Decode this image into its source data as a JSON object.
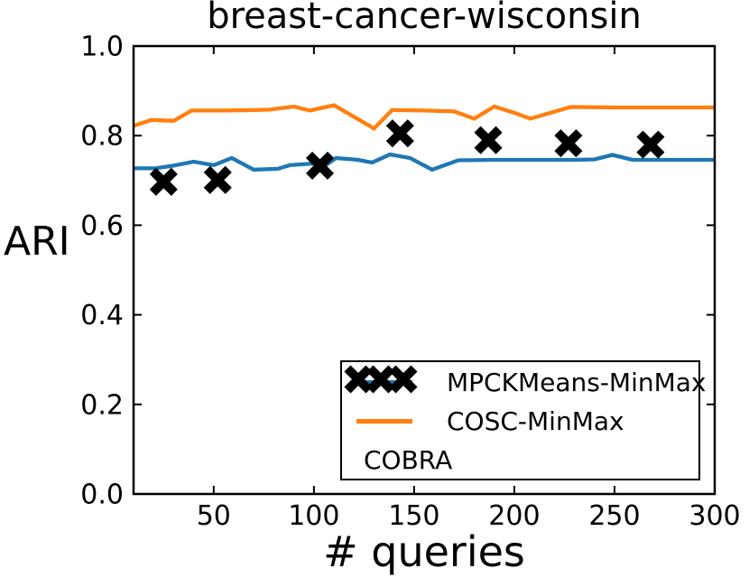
{
  "figure": {
    "background": "#ffffff",
    "text_color": "#000000"
  },
  "chart_data": {
    "type": "line",
    "title": "breast-cancer-wisconsin",
    "xlabel": "# queries",
    "ylabel": "ARI",
    "xlim": [
      10,
      300
    ],
    "ylim": [
      0.0,
      1.0
    ],
    "x_ticks": [
      50,
      100,
      150,
      200,
      250,
      300
    ],
    "y_ticks": [
      0.0,
      0.2,
      0.4,
      0.6,
      0.8,
      1.0
    ],
    "grid": false,
    "legend": {
      "position": "lower-right-inside-axes",
      "border": "#000000",
      "entries": [
        "MPCKMeans-MinMax",
        "COSC-MinMax",
        "COBRA"
      ]
    },
    "series": [
      {
        "name": "MPCKMeans-MinMax",
        "type": "line",
        "color": "#1f77b4",
        "x": [
          10,
          21,
          30,
          40,
          50,
          59,
          70,
          82,
          88,
          100,
          105,
          111,
          122,
          129,
          138,
          148,
          159,
          172,
          190,
          210,
          230,
          240,
          249,
          259,
          280,
          300
        ],
        "y": [
          0.727,
          0.727,
          0.733,
          0.742,
          0.734,
          0.75,
          0.724,
          0.726,
          0.734,
          0.738,
          0.731,
          0.75,
          0.746,
          0.74,
          0.758,
          0.75,
          0.724,
          0.745,
          0.746,
          0.746,
          0.746,
          0.747,
          0.757,
          0.746,
          0.746,
          0.746
        ]
      },
      {
        "name": "COSC-MinMax",
        "type": "line",
        "color": "#ff7f0e",
        "x": [
          10,
          19,
          30,
          39,
          55,
          70,
          78,
          90,
          98,
          110,
          120,
          130,
          139,
          155,
          170,
          180,
          190,
          200,
          208,
          218,
          228,
          250,
          275,
          300
        ],
        "y": [
          0.822,
          0.835,
          0.833,
          0.856,
          0.856,
          0.857,
          0.858,
          0.865,
          0.856,
          0.868,
          0.842,
          0.816,
          0.857,
          0.856,
          0.854,
          0.838,
          0.865,
          0.851,
          0.838,
          0.851,
          0.864,
          0.863,
          0.863,
          0.863
        ]
      },
      {
        "name": "COBRA",
        "type": "scatter",
        "marker": "x",
        "color": "#000000",
        "x": [
          25,
          52,
          103,
          143,
          187,
          227,
          268
        ],
        "y": [
          0.697,
          0.701,
          0.733,
          0.805,
          0.79,
          0.783,
          0.78
        ]
      }
    ]
  }
}
